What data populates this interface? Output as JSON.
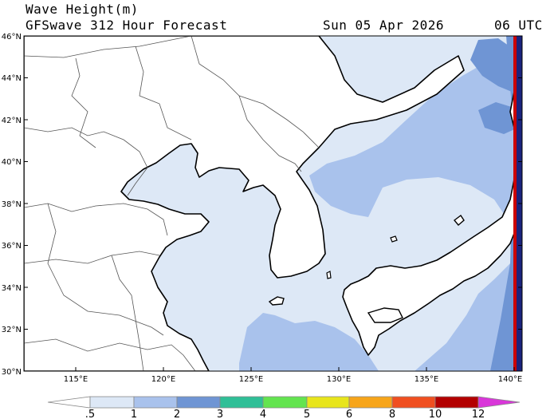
{
  "header": {
    "variable": "Wave Height(m)",
    "model": "GFSwave 312 Hour Forecast",
    "date": "Sun 05 Apr 2026",
    "time": "06 UTC"
  },
  "axes": {
    "lat_labels": [
      "46°N",
      "44°N",
      "42°N",
      "40°N",
      "38°N",
      "36°N",
      "34°N",
      "32°N",
      "30°N"
    ],
    "lon_labels": [
      "115°E",
      "120°E",
      "125°E",
      "130°E",
      "135°E",
      "140°E"
    ]
  },
  "colorbar": {
    "labels": [
      ".5",
      "1",
      "2",
      "3",
      "4",
      "5",
      "6",
      "8",
      "10",
      "12"
    ],
    "colors": [
      "#ffffff",
      "#dde8f6",
      "#a9c2ec",
      "#6f95d4",
      "#2fbf97",
      "#63e44f",
      "#e8e51b",
      "#f7a51a",
      "#f04f20",
      "#b30000",
      "#d936d9"
    ]
  },
  "map_colors": {
    "land": "#ffffff",
    "sea_light": "#dde8f6",
    "sea_mid": "#a9c2ec",
    "sea_strong": "#6f95d4",
    "edge_dark": "#1a237e",
    "edge_red": "#cc0000"
  }
}
